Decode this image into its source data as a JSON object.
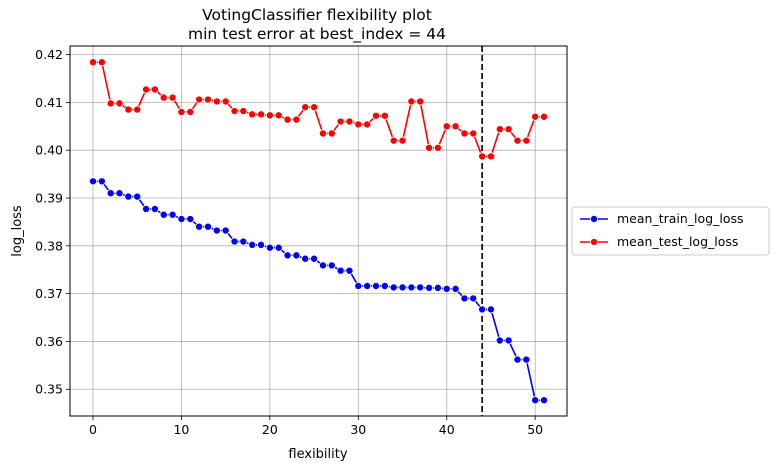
{
  "chart_data": {
    "type": "line",
    "title": "VotingClassifier flexibility plot",
    "subtitle": "min test error at best_index = 44",
    "xlabel": "flexibility",
    "ylabel": "log_loss",
    "xlim": [
      -2.6,
      53.6
    ],
    "ylim": [
      0.3444,
      0.4218
    ],
    "xticks": [
      0,
      10,
      20,
      30,
      40,
      50
    ],
    "yticks": [
      0.35,
      0.36,
      0.37,
      0.38,
      0.39,
      0.4,
      0.41,
      0.42
    ],
    "ytick_labels": [
      "0.35",
      "0.36",
      "0.37",
      "0.38",
      "0.39",
      "0.40",
      "0.41",
      "0.42"
    ],
    "grid": true,
    "legend_position": "outside-right",
    "vline": {
      "x": 44,
      "color": "#000000",
      "style": "dashed"
    },
    "x": [
      0,
      1,
      2,
      3,
      4,
      5,
      6,
      7,
      8,
      9,
      10,
      11,
      12,
      13,
      14,
      15,
      16,
      17,
      18,
      19,
      20,
      21,
      22,
      23,
      24,
      25,
      26,
      27,
      28,
      29,
      30,
      31,
      32,
      33,
      34,
      35,
      36,
      37,
      38,
      39,
      40,
      41,
      42,
      43,
      44,
      45,
      46,
      47,
      48,
      49,
      50,
      51
    ],
    "series": [
      {
        "name": "mean_train_log_loss",
        "color": "#0000ff",
        "values": [
          0.3935,
          0.3935,
          0.391,
          0.391,
          0.3903,
          0.3903,
          0.3877,
          0.3877,
          0.3865,
          0.3865,
          0.3856,
          0.3856,
          0.384,
          0.384,
          0.3832,
          0.3832,
          0.3809,
          0.3809,
          0.3802,
          0.3802,
          0.3796,
          0.3796,
          0.378,
          0.378,
          0.3773,
          0.3773,
          0.3759,
          0.3759,
          0.3748,
          0.3748,
          0.3716,
          0.3716,
          0.3716,
          0.3716,
          0.3713,
          0.3713,
          0.3713,
          0.3713,
          0.3712,
          0.3712,
          0.371,
          0.371,
          0.369,
          0.369,
          0.3667,
          0.3667,
          0.3602,
          0.3602,
          0.3562,
          0.3562,
          0.3477,
          0.3477
        ]
      },
      {
        "name": "mean_test_log_loss",
        "color": "#ff0000",
        "values": [
          0.4184,
          0.4184,
          0.4098,
          0.4098,
          0.4085,
          0.4085,
          0.4127,
          0.4127,
          0.411,
          0.411,
          0.408,
          0.408,
          0.4106,
          0.4106,
          0.4102,
          0.4102,
          0.4082,
          0.4082,
          0.4075,
          0.4075,
          0.4073,
          0.4073,
          0.4064,
          0.4064,
          0.409,
          0.409,
          0.4035,
          0.4035,
          0.406,
          0.406,
          0.4054,
          0.4054,
          0.4072,
          0.4072,
          0.402,
          0.402,
          0.4102,
          0.4102,
          0.4005,
          0.4005,
          0.405,
          0.405,
          0.4035,
          0.4035,
          0.3987,
          0.3987,
          0.4044,
          0.4044,
          0.402,
          0.402,
          0.407,
          0.407
        ]
      }
    ]
  }
}
